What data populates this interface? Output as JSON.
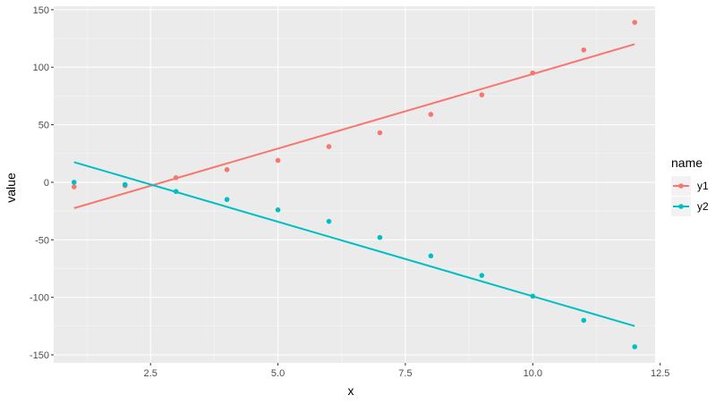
{
  "chart_data": {
    "type": "scatter",
    "title": "",
    "xlabel": "x",
    "ylabel": "value",
    "xlim": [
      0.6,
      12.4
    ],
    "ylim": [
      -157,
      153
    ],
    "x_ticks": [
      2.5,
      5.0,
      7.5,
      10.0,
      12.5
    ],
    "x_tick_labels": [
      "2.5",
      "5.0",
      "7.5",
      "10.0",
      "12.5"
    ],
    "y_ticks": [
      -150,
      -100,
      -50,
      0,
      50,
      100,
      150
    ],
    "y_tick_labels": [
      "-150",
      "-100",
      "-50",
      "0",
      "50",
      "100",
      "150"
    ],
    "grid": true,
    "background": "#ebebeb",
    "legend": {
      "title": "name",
      "position": "right"
    },
    "x": [
      1,
      2,
      3,
      4,
      5,
      6,
      7,
      8,
      9,
      10,
      11,
      12
    ],
    "series": [
      {
        "name": "y1",
        "color": "#f8766d",
        "values": [
          -4,
          -3,
          4,
          11,
          19,
          31,
          43,
          59,
          76,
          95,
          115,
          139
        ],
        "trend": [
          -22.5,
          120
        ]
      },
      {
        "name": "y2",
        "color": "#00bfc4",
        "values": [
          0,
          -2,
          -8,
          -15,
          -24,
          -34,
          -48,
          -64,
          -81,
          -99,
          -120,
          -143
        ],
        "trend": [
          17.5,
          -125
        ]
      }
    ]
  }
}
